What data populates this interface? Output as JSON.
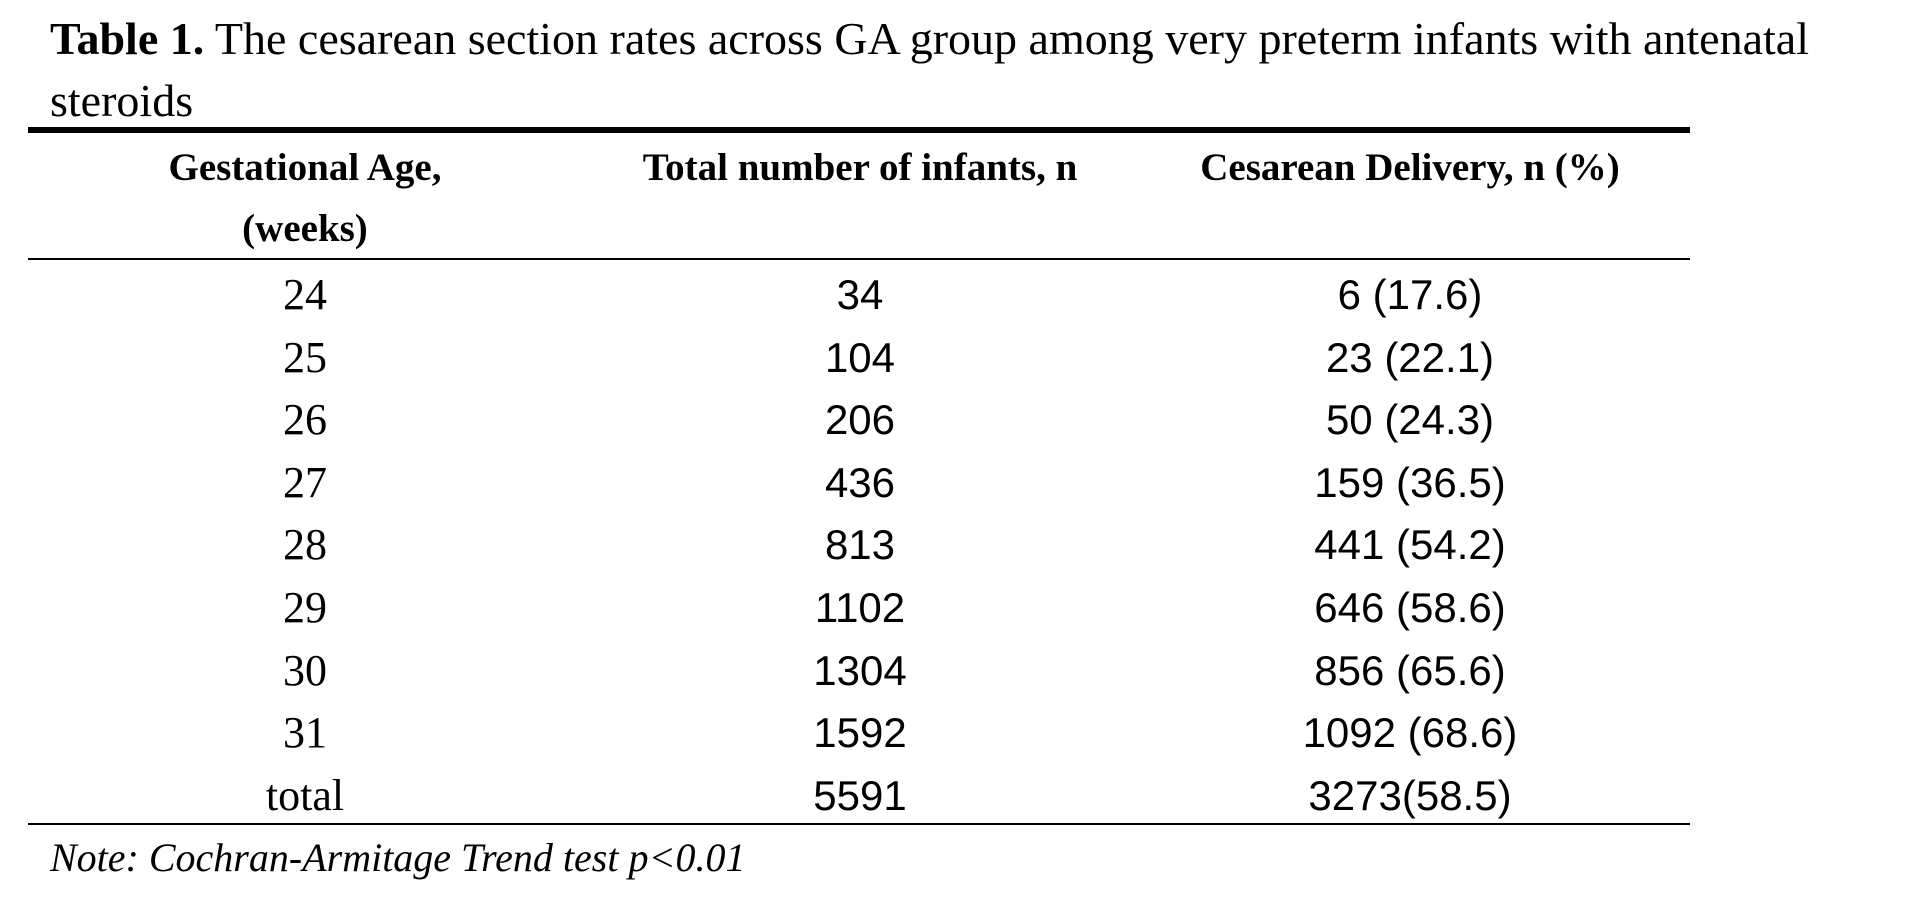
{
  "caption": {
    "label": "Table 1.",
    "text": " The cesarean section rates across GA group among very preterm infants with antenatal steroids"
  },
  "table": {
    "headers": [
      "Gestational Age, (weeks)",
      "Total number of infants, n",
      "Cesarean Delivery, n (%)"
    ],
    "rows": [
      {
        "ga": "24",
        "total": "34",
        "cesarean": "6 (17.6)"
      },
      {
        "ga": "25",
        "total": "104",
        "cesarean": "23 (22.1)"
      },
      {
        "ga": "26",
        "total": "206",
        "cesarean": "50 (24.3)"
      },
      {
        "ga": "27",
        "total": "436",
        "cesarean": "159 (36.5)"
      },
      {
        "ga": "28",
        "total": "813",
        "cesarean": "441 (54.2)"
      },
      {
        "ga": "29",
        "total": "1102",
        "cesarean": "646 (58.6)"
      },
      {
        "ga": "30",
        "total": "1304",
        "cesarean": "856 (65.6)"
      },
      {
        "ga": "31",
        "total": "1592",
        "cesarean": "1092 (68.6)"
      },
      {
        "ga": "total",
        "total": "5591",
        "cesarean": "3273(58.5)"
      }
    ]
  },
  "note": "Note: Cochran-Armitage Trend test p<0.01"
}
